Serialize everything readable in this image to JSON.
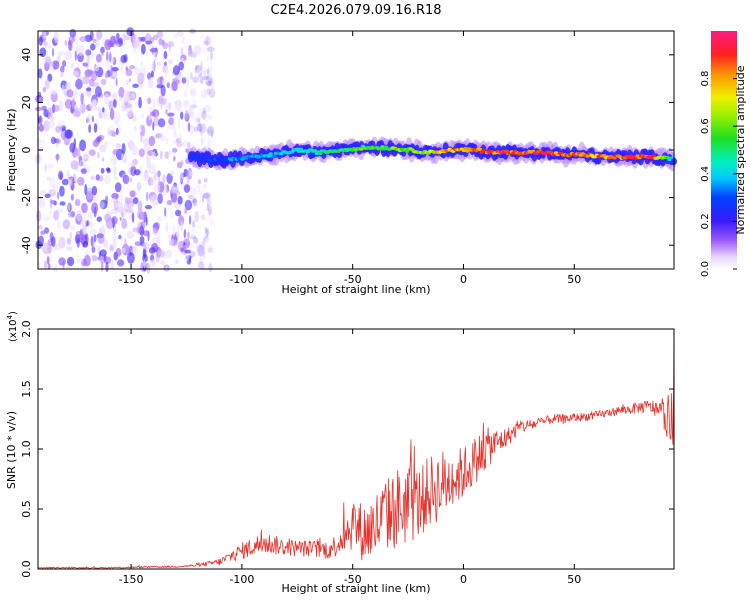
{
  "page_title": "C2E4.2026.079.09.16.R18",
  "chart_data": [
    {
      "id": "spectrogram",
      "type": "heatmap",
      "title": "C2E4.2026.079.09.16.R18",
      "xlabel": "Height of straight line (km)",
      "ylabel": "Frequency (Hz)",
      "xlim": [
        -192,
        95
      ],
      "ylim": [
        -50,
        50
      ],
      "xticks": [
        -150,
        -100,
        -50,
        0,
        50
      ],
      "xtick_labels": [
        "-150",
        "-100",
        "-50",
        "0",
        "50"
      ],
      "yticks": [
        -40,
        -20,
        0,
        20,
        40
      ],
      "ytick_labels": [
        "-40",
        "-20",
        "0",
        "20",
        "40"
      ],
      "noise_region_x": [
        -192,
        -123
      ],
      "signal_track": {
        "x": [
          -123,
          -115,
          -105,
          -95,
          -85,
          -75,
          -65,
          -55,
          -45,
          -35,
          -25,
          -15,
          -5,
          5,
          15,
          25,
          35,
          45,
          55,
          65,
          75,
          85,
          95
        ],
        "frequency": [
          -3,
          -4,
          -4,
          -3,
          -2,
          0,
          -1,
          0,
          1,
          1,
          0,
          -1,
          0,
          0,
          -1,
          -1,
          -1,
          -2,
          -2,
          -3,
          -3,
          -3,
          -4
        ],
        "amplitude": [
          0.28,
          0.3,
          0.35,
          0.4,
          0.42,
          0.45,
          0.5,
          0.55,
          0.6,
          0.62,
          0.65,
          0.75,
          0.85,
          0.9,
          0.95,
          0.97,
          0.98,
          0.9,
          0.85,
          0.88,
          0.95,
          0.97,
          0.35
        ]
      }
    },
    {
      "id": "colorbar",
      "type": "colorbar",
      "label": "Normalized spectral amplitude",
      "range": [
        0,
        1
      ],
      "ticks": [
        0.0,
        0.2,
        0.4,
        0.6,
        0.8
      ],
      "tick_labels": [
        "0.0",
        "0.2",
        "0.4",
        "0.6",
        "0.8"
      ]
    },
    {
      "id": "snr",
      "type": "line",
      "xlabel": "Height of straight line (km)",
      "ylabel": "SNR (10 * v/v)",
      "multiplier_label": "(x10",
      "multiplier_exponent": "4",
      "multiplier_close": ")",
      "xlim": [
        -192,
        95
      ],
      "ylim": [
        0,
        2.0
      ],
      "xticks": [
        -150,
        -100,
        -50,
        0,
        50
      ],
      "xtick_labels": [
        "-150",
        "-100",
        "-50",
        "0",
        "50"
      ],
      "yticks": [
        0.0,
        0.5,
        1.0,
        1.5,
        2.0
      ],
      "ytick_labels": [
        "0.0",
        "0.5",
        "1.0",
        "1.5",
        "2.0"
      ],
      "series": [
        {
          "name": "SNR",
          "color": "#e8312a",
          "x": [
            -192,
            -160,
            -130,
            -120,
            -110,
            -100,
            -90,
            -80,
            -70,
            -60,
            -55,
            -50,
            -45,
            -40,
            -35,
            -30,
            -25,
            -20,
            -15,
            -10,
            -5,
            0,
            5,
            10,
            15,
            20,
            25,
            30,
            35,
            40,
            45,
            50,
            55,
            60,
            65,
            70,
            75,
            80,
            85,
            90,
            95
          ],
          "y": [
            0.01,
            0.01,
            0.02,
            0.03,
            0.06,
            0.15,
            0.22,
            0.18,
            0.17,
            0.16,
            0.25,
            0.38,
            0.3,
            0.35,
            0.45,
            0.5,
            0.55,
            0.55,
            0.65,
            0.7,
            0.75,
            0.8,
            0.9,
            1.0,
            1.05,
            1.1,
            1.18,
            1.2,
            1.22,
            1.25,
            1.25,
            1.26,
            1.27,
            1.28,
            1.3,
            1.32,
            1.33,
            1.35,
            1.35,
            1.3,
            1.2
          ],
          "noise": [
            0.005,
            0.005,
            0.008,
            0.01,
            0.03,
            0.07,
            0.09,
            0.07,
            0.07,
            0.08,
            0.12,
            0.22,
            0.25,
            0.3,
            0.3,
            0.35,
            0.35,
            0.3,
            0.3,
            0.3,
            0.25,
            0.22,
            0.2,
            0.18,
            0.12,
            0.08,
            0.06,
            0.05,
            0.04,
            0.04,
            0.04,
            0.035,
            0.035,
            0.035,
            0.035,
            0.035,
            0.04,
            0.05,
            0.06,
            0.1,
            0.3
          ]
        }
      ]
    }
  ]
}
